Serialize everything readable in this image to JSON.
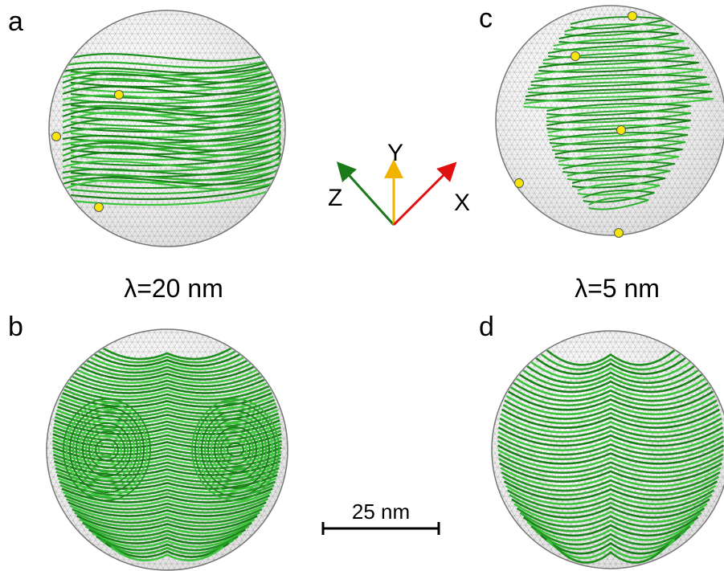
{
  "panels": [
    {
      "label": "a"
    },
    {
      "label": "b"
    },
    {
      "label": "c"
    },
    {
      "label": "d"
    }
  ],
  "captions": [
    "λ=20 nm",
    "λ=5 nm"
  ],
  "axes": {
    "x": "X",
    "y": "Y",
    "z": "Z"
  },
  "scale_bar": {
    "label": "25 nm"
  }
}
